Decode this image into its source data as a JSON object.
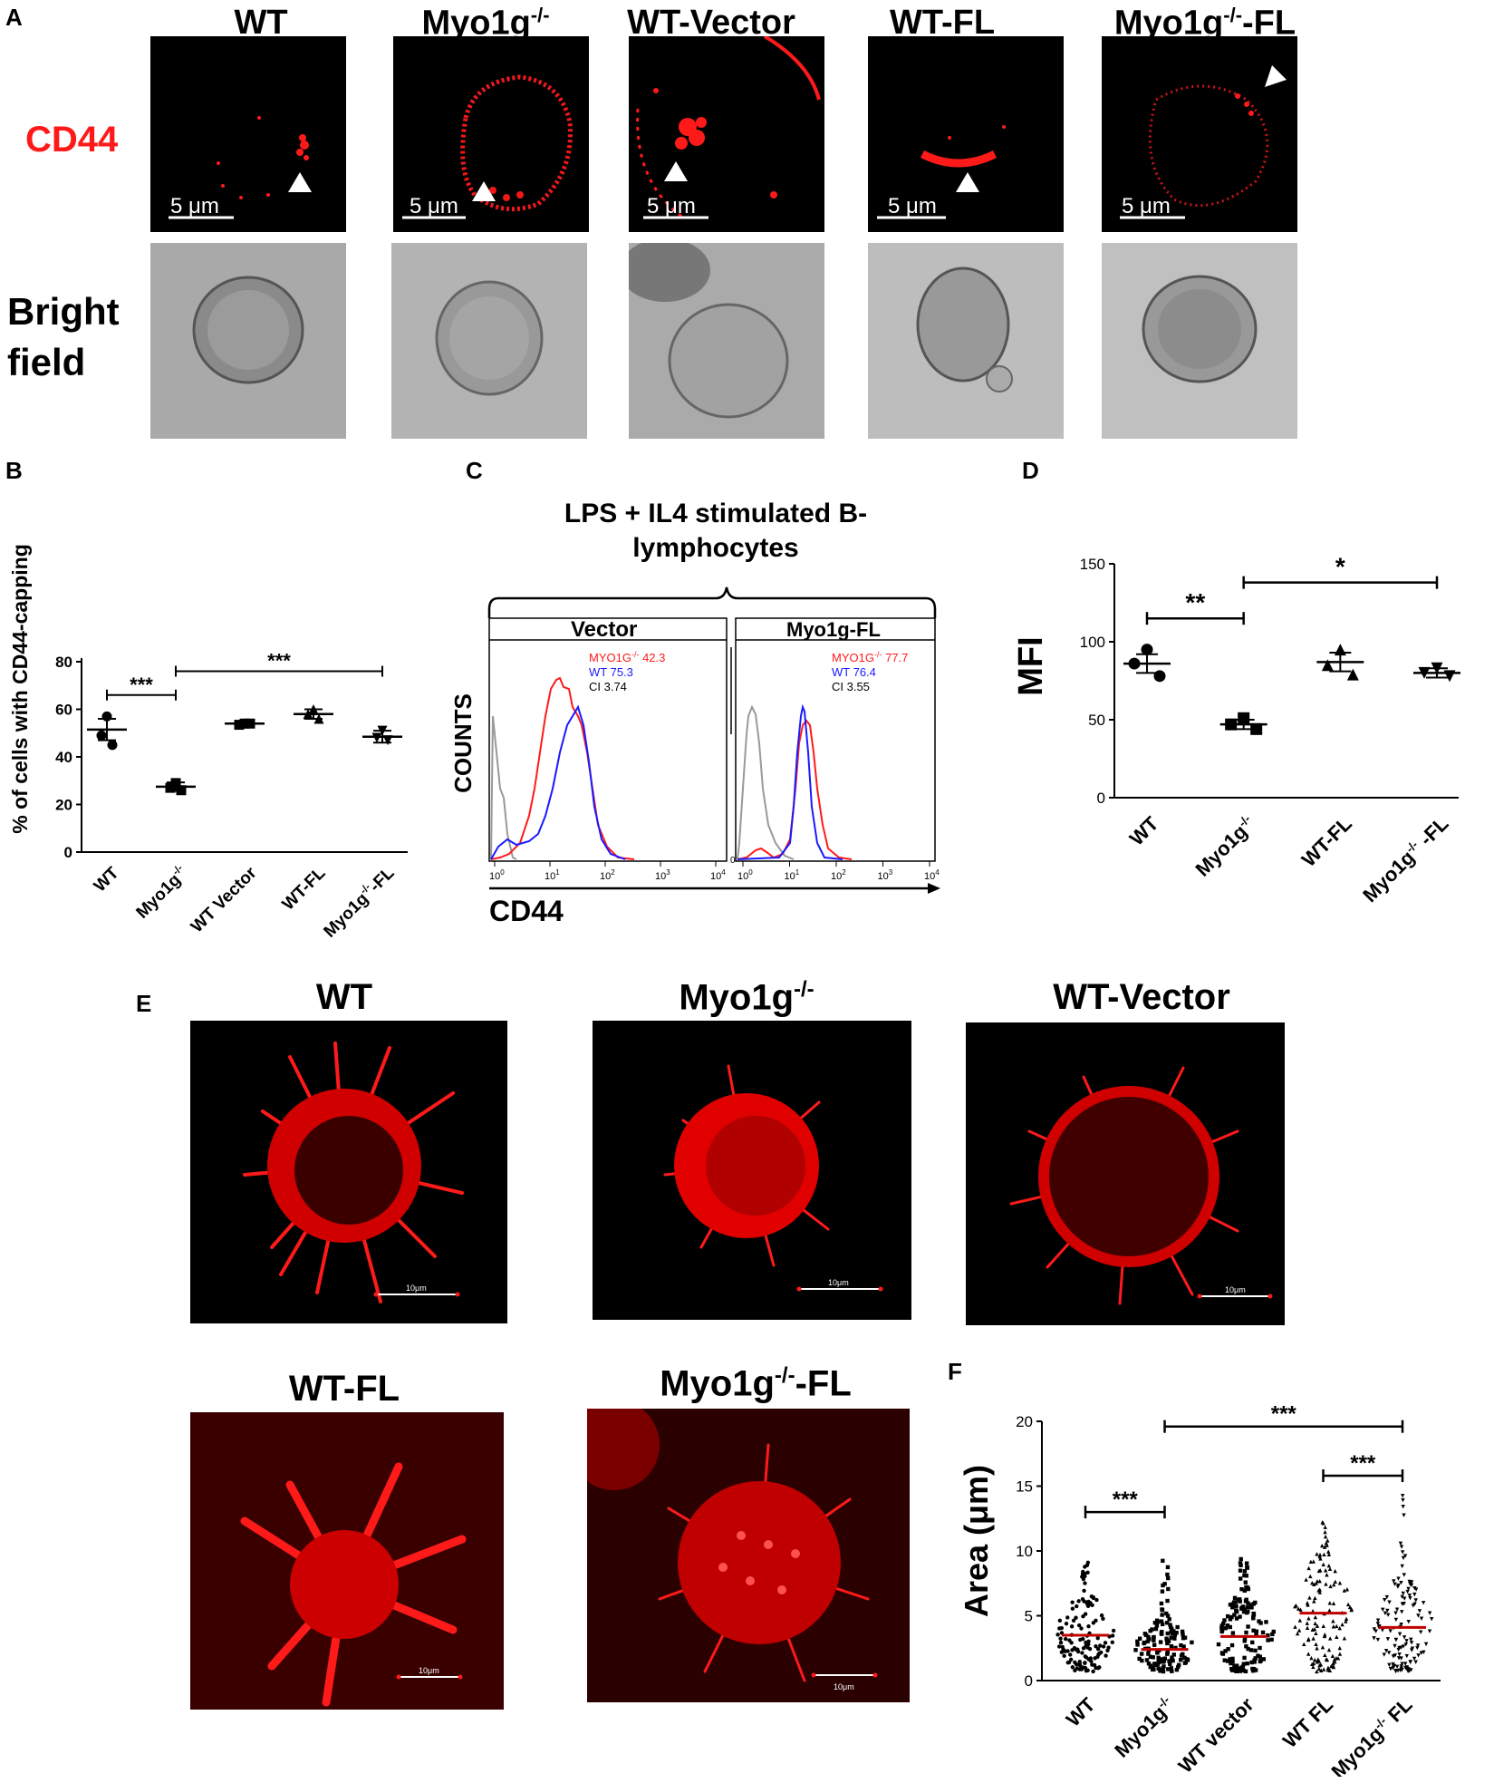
{
  "panels": {
    "A": "A",
    "B": "B",
    "C": "C",
    "D": "D",
    "E": "E",
    "F": "F"
  },
  "a_columns": [
    {
      "label": "WT",
      "sup": ""
    },
    {
      "label": "Myo1g",
      "sup": "-/-"
    },
    {
      "label": "WT-Vector",
      "sup": ""
    },
    {
      "label": "WT-FL",
      "sup": ""
    },
    {
      "label": "Myo1g",
      "sup": "-/-",
      "suffix": "-FL"
    }
  ],
  "a_rows": {
    "cd44": "CD44",
    "bright1": "Bright",
    "bright2": "field"
  },
  "a_scalebar": "5 μm",
  "colors": {
    "red": "#ff1a1a",
    "blue": "#1a1aff",
    "gray": "#999999"
  },
  "chart_b": {
    "type": "scatter",
    "ylabel": "% of cells with CD44-capping",
    "ylim": [
      0,
      80
    ],
    "yticks": [
      "0",
      "20",
      "40",
      "60",
      "80"
    ],
    "categories": [
      "WT",
      "Myo1g-/-",
      "WT Vector",
      "WT-FL",
      "Myo1g-/--FL"
    ],
    "means": [
      51.5,
      27.5,
      54,
      58,
      48.5
    ],
    "sem": [
      4.5,
      1.8,
      1,
      2,
      2.5
    ],
    "points": [
      [
        57,
        49,
        45
      ],
      [
        29,
        27,
        26
      ],
      [
        54,
        53.5,
        54
      ],
      [
        60,
        58,
        56
      ],
      [
        51,
        48,
        47
      ]
    ],
    "sig": [
      {
        "text": "***"
      },
      {
        "text": "***"
      }
    ]
  },
  "chart_c": {
    "type": "line",
    "title1": "LPS + IL4 stimulated B-",
    "title2": "lymphocytes",
    "ylabel": "COUNTS",
    "xlabel": "CD44",
    "left": {
      "label": "Vector",
      "legend": [
        {
          "text": "MYO1G",
          "sup": "-/-",
          "val": " 42.3",
          "color": "#ff1a1a"
        },
        {
          "text": "WT 75.3",
          "color": "#1a1aff"
        },
        {
          "text": "CI 3.74",
          "color": "#000"
        }
      ]
    },
    "right": {
      "label": "Myo1g-FL",
      "legend": [
        {
          "text": "MYO1G",
          "sup": "-/-",
          "val": " 77.7",
          "color": "#ff1a1a"
        },
        {
          "text": "WT 76.4",
          "color": "#1a1aff"
        },
        {
          "text": "CI 3.55",
          "color": "#000"
        }
      ]
    },
    "xticks": [
      "10",
      "10",
      "10",
      "10",
      "10"
    ],
    "xexp": [
      "0",
      "1",
      "2",
      "3",
      "4"
    ],
    "zero": "0"
  },
  "chart_d": {
    "type": "scatter",
    "ylabel": "MFI",
    "ylim": [
      0,
      150
    ],
    "yticks": [
      "0",
      "50",
      "100",
      "150"
    ],
    "categories": [
      "WT",
      "Myo1g-/-",
      "WT-FL",
      "Myo1g-/- -FL"
    ],
    "means": [
      86,
      47,
      87,
      80
    ],
    "sem": [
      6,
      3,
      6,
      3
    ],
    "points": [
      [
        95,
        86,
        78
      ],
      [
        51,
        47,
        44
      ],
      [
        95,
        85,
        79
      ],
      [
        83,
        80,
        78
      ]
    ],
    "sig": [
      {
        "text": "**"
      },
      {
        "text": "*"
      }
    ]
  },
  "e_titles": [
    {
      "label": "WT",
      "sup": ""
    },
    {
      "label": "Myo1g",
      "sup": "-/-"
    },
    {
      "label": "WT-Vector",
      "sup": ""
    },
    {
      "label": "WT-FL",
      "sup": ""
    },
    {
      "label": "Myo1g",
      "sup": "-/-",
      "suffix": "-FL"
    }
  ],
  "e_scalebar": "10μm",
  "chart_f": {
    "type": "scatter",
    "ylabel": "Area (μm)",
    "ylim": [
      0,
      20
    ],
    "yticks": [
      "0",
      "5",
      "10",
      "15",
      "20"
    ],
    "categories": [
      "WT",
      "Myo1g-/-",
      "WT vector",
      "WT FL",
      "Myo1g-/- FL"
    ],
    "medians": [
      3.5,
      2.4,
      3.4,
      5.2,
      4.1
    ],
    "max": [
      9.3,
      9.8,
      9.5,
      12.3,
      14.8
    ],
    "sig": [
      {
        "text": "***"
      },
      {
        "text": "***"
      },
      {
        "text": "***"
      }
    ]
  }
}
